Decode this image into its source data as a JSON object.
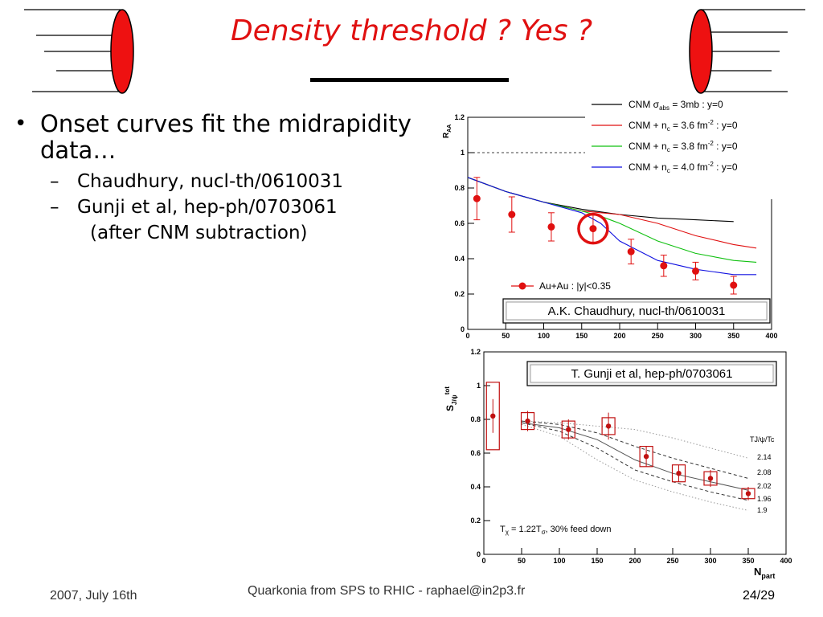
{
  "slide": {
    "title": "Density threshold ? Yes ?",
    "bullets": [
      {
        "text": "Onset curves fit the midrapidity data…",
        "subitems": [
          {
            "text": "Chaudhury, nucl-th/0610031"
          },
          {
            "text": "Gunji et al, hep-ph/0703061",
            "continuation": "(after CNM subtraction)"
          }
        ]
      }
    ],
    "bullet_glyph": "•",
    "dash_glyph": "–",
    "footer": {
      "date": "2007, July 16th",
      "center": "Quarkonia from SPS to RHIC - raphael@in2p3.fr",
      "page": "24/29"
    }
  },
  "colors": {
    "title": "#e01010",
    "data_points": "#e01010",
    "cnm": "#000000",
    "nc36": "#e01010",
    "nc38": "#10c010",
    "nc40": "#1010e0"
  },
  "chart_data": [
    {
      "type": "scatter",
      "ylabel": "R_AA",
      "xlim": [
        0,
        400
      ],
      "ylim": [
        0,
        1.2
      ],
      "xticks": [
        "0",
        "50",
        "100",
        "150",
        "200",
        "250",
        "300",
        "350",
        "400"
      ],
      "yticks": [
        "0",
        "0.2",
        "0.4",
        "0.6",
        "0.8",
        "1",
        "1.2"
      ],
      "source_label": "A.K. Chaudhury, nucl-th/0610031",
      "legend_marker_label": "Au+Au : |y|<0.35",
      "points": {
        "name": "Au+Au : |y|<0.35",
        "x": [
          12,
          58,
          110,
          165,
          215,
          258,
          300,
          350
        ],
        "y": [
          0.74,
          0.65,
          0.58,
          0.57,
          0.44,
          0.36,
          0.33,
          0.25
        ],
        "err": [
          0.12,
          0.1,
          0.08,
          0.08,
          0.07,
          0.06,
          0.05,
          0.05
        ]
      },
      "series": [
        {
          "name": "CNM σabs = 3mb : y=0",
          "color": "#000000",
          "x": [
            0,
            50,
            100,
            150,
            200,
            250,
            300,
            350
          ],
          "y": [
            0.86,
            0.78,
            0.72,
            0.68,
            0.65,
            0.63,
            0.62,
            0.61
          ]
        },
        {
          "name": "CNM + nc = 3.6 fm-2 : y=0",
          "color": "#e01010",
          "x": [
            0,
            50,
            100,
            150,
            175,
            200,
            250,
            300,
            350,
            380
          ],
          "y": [
            0.86,
            0.78,
            0.72,
            0.67,
            0.66,
            0.65,
            0.6,
            0.53,
            0.48,
            0.46
          ]
        },
        {
          "name": "CNM + nc = 3.8 fm-2 : y=0",
          "color": "#10c010",
          "x": [
            0,
            50,
            100,
            150,
            175,
            200,
            250,
            300,
            350,
            380
          ],
          "y": [
            0.86,
            0.78,
            0.72,
            0.67,
            0.64,
            0.6,
            0.5,
            0.43,
            0.39,
            0.38
          ]
        },
        {
          "name": "CNM + nc = 4.0 fm-2 : y=0",
          "color": "#1010e0",
          "x": [
            0,
            50,
            100,
            150,
            175,
            200,
            250,
            300,
            350,
            380
          ],
          "y": [
            0.86,
            0.78,
            0.72,
            0.66,
            0.6,
            0.5,
            0.39,
            0.34,
            0.31,
            0.31
          ]
        }
      ],
      "legend": [
        {
          "pre": "CNM σ",
          "sub": "abs",
          "post": " = 3mb : y=0"
        },
        {
          "pre": "CNM + n",
          "sub": "c",
          "post": " = 3.6 fm",
          "sup": "-2",
          "post2": " : y=0"
        },
        {
          "pre": "CNM + n",
          "sub": "c",
          "post": " = 3.8 fm",
          "sup": "-2",
          "post2": " : y=0"
        },
        {
          "pre": "CNM + n",
          "sub": "c",
          "post": " = 4.0 fm",
          "sup": "-2",
          "post2": " : y=0"
        }
      ],
      "highlighted_point_x": 165,
      "dashed_reference_y": 1
    },
    {
      "type": "scatter",
      "ylabel": "S^tot_J/ψ",
      "xlabel": "N_part",
      "xlim": [
        0,
        400
      ],
      "ylim": [
        0,
        1.2
      ],
      "xticks": [
        "0",
        "50",
        "100",
        "150",
        "200",
        "250",
        "300",
        "350",
        "400"
      ],
      "yticks": [
        "0",
        "0.2",
        "0.4",
        "0.6",
        "0.8",
        "1",
        "1.2"
      ],
      "source_label": "T. Gunji et al, hep-ph/0703061",
      "annotation": "Tχ = 1.22Tσ, 30% feed down",
      "curve_header": "TJ/ψ/Tc",
      "curve_labels": [
        "2.14",
        "2.08",
        "2.02",
        "1.96",
        "1.9"
      ],
      "points": {
        "x": [
          12,
          58,
          112,
          165,
          215,
          258,
          300,
          350
        ],
        "y": [
          0.82,
          0.79,
          0.74,
          0.76,
          0.58,
          0.48,
          0.45,
          0.36
        ],
        "err": [
          0.1,
          0.06,
          0.06,
          0.08,
          0.06,
          0.05,
          0.05,
          0.04
        ],
        "sys": [
          0.2,
          0.05,
          0.05,
          0.05,
          0.06,
          0.05,
          0.04,
          0.03
        ]
      },
      "curves": [
        {
          "label": "2.14",
          "style": "dotted",
          "x": [
            50,
            100,
            150,
            200,
            250,
            300,
            350
          ],
          "y": [
            0.79,
            0.78,
            0.76,
            0.74,
            0.69,
            0.63,
            0.57
          ]
        },
        {
          "label": "2.08",
          "style": "dashed",
          "x": [
            50,
            100,
            150,
            200,
            250,
            300,
            350
          ],
          "y": [
            0.79,
            0.77,
            0.72,
            0.64,
            0.57,
            0.51,
            0.45
          ]
        },
        {
          "label": "2.02",
          "style": "solid",
          "x": [
            50,
            100,
            150,
            200,
            250,
            300,
            350
          ],
          "y": [
            0.78,
            0.75,
            0.68,
            0.56,
            0.48,
            0.43,
            0.38
          ]
        },
        {
          "label": "1.96",
          "style": "dashed",
          "x": [
            50,
            100,
            150,
            200,
            250,
            300,
            350
          ],
          "y": [
            0.78,
            0.73,
            0.63,
            0.5,
            0.43,
            0.37,
            0.32
          ]
        },
        {
          "label": "1.9",
          "style": "dotted",
          "x": [
            50,
            100,
            150,
            200,
            250,
            300,
            350
          ],
          "y": [
            0.77,
            0.7,
            0.56,
            0.44,
            0.37,
            0.31,
            0.26
          ]
        }
      ]
    }
  ]
}
